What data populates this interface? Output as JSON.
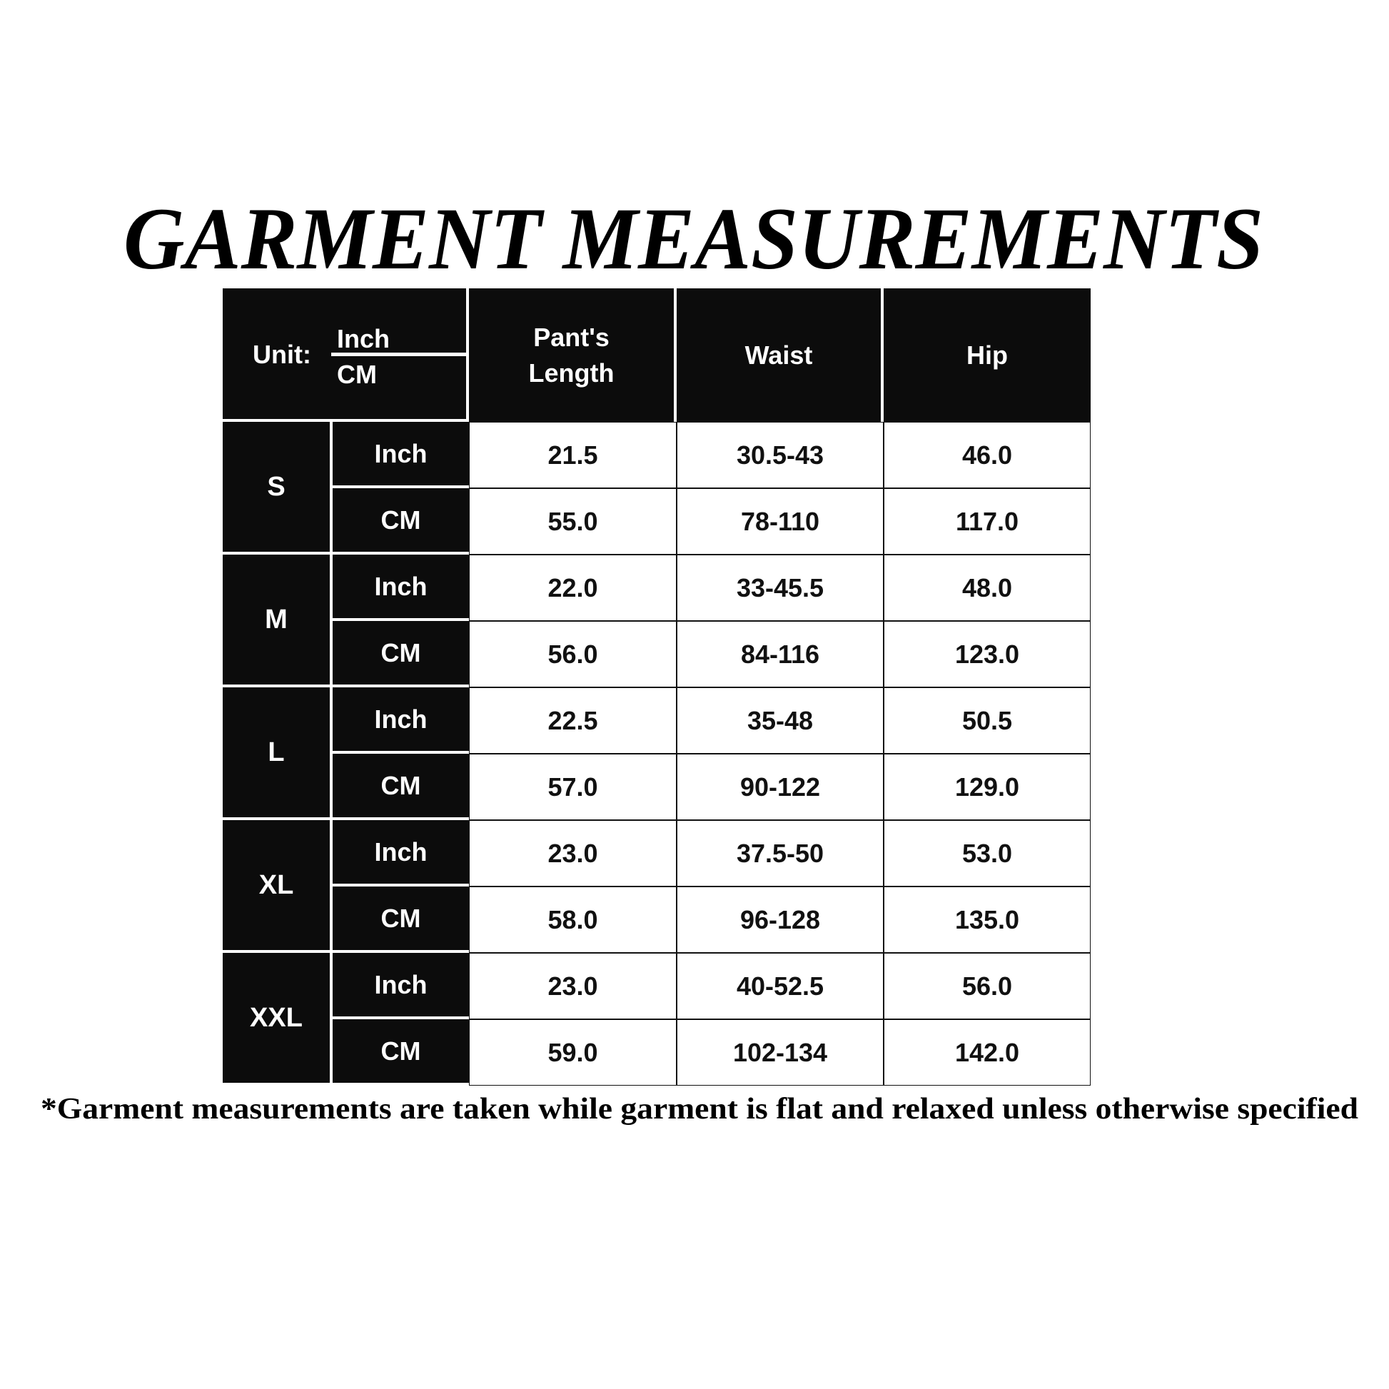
{
  "title": "GARMENT MEASUREMENTS",
  "header": {
    "unit_label": "Unit:",
    "unit_inch": "Inch",
    "unit_cm": "CM",
    "columns": [
      [
        "Pant's",
        "Length"
      ],
      [
        "Waist"
      ],
      [
        "Hip"
      ]
    ]
  },
  "sizes": [
    {
      "size": "S",
      "rows": [
        {
          "unit": "Inch",
          "length": "21.5",
          "waist": "30.5-43",
          "hip": "46.0"
        },
        {
          "unit": "CM",
          "length": "55.0",
          "waist": "78-110",
          "hip": "117.0"
        }
      ]
    },
    {
      "size": "M",
      "rows": [
        {
          "unit": "Inch",
          "length": "22.0",
          "waist": "33-45.5",
          "hip": "48.0"
        },
        {
          "unit": "CM",
          "length": "56.0",
          "waist": "84-116",
          "hip": "123.0"
        }
      ]
    },
    {
      "size": "L",
      "rows": [
        {
          "unit": "Inch",
          "length": "22.5",
          "waist": "35-48",
          "hip": "50.5"
        },
        {
          "unit": "CM",
          "length": "57.0",
          "waist": "90-122",
          "hip": "129.0"
        }
      ]
    },
    {
      "size": "XL",
      "rows": [
        {
          "unit": "Inch",
          "length": "23.0",
          "waist": "37.5-50",
          "hip": "53.0"
        },
        {
          "unit": "CM",
          "length": "58.0",
          "waist": "96-128",
          "hip": "135.0"
        }
      ]
    },
    {
      "size": "XXL",
      "rows": [
        {
          "unit": "Inch",
          "length": "23.0",
          "waist": "40-52.5",
          "hip": "56.0"
        },
        {
          "unit": "CM",
          "length": "59.0",
          "waist": "102-134",
          "hip": "142.0"
        }
      ]
    }
  ],
  "footnote": "*Garment measurements are taken while garment is flat and relaxed unless otherwise specified"
}
